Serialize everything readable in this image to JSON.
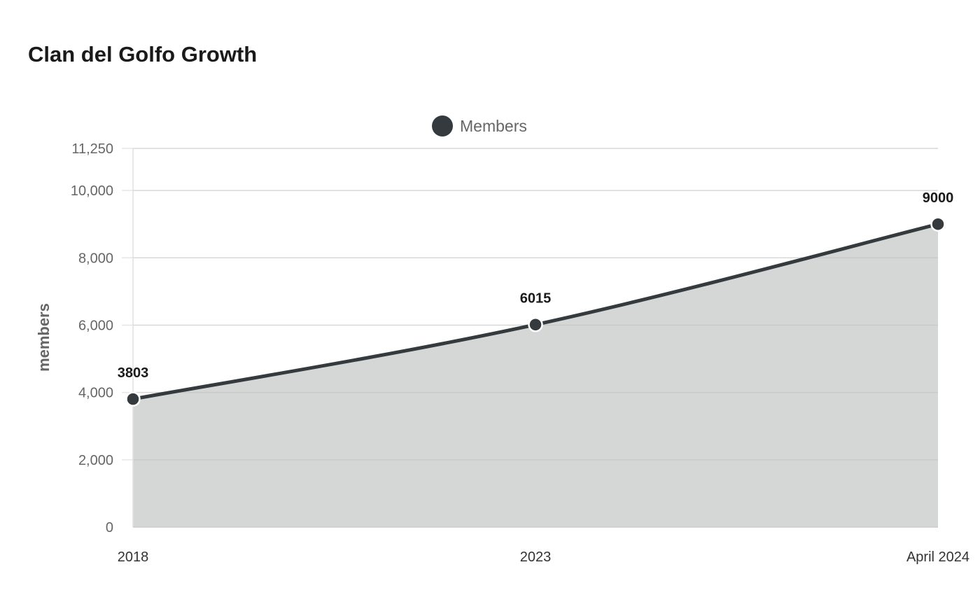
{
  "title": "Clan del Golfo Growth",
  "chart_data": {
    "type": "area",
    "title": "Clan del Golfo Growth",
    "categories": [
      "2018",
      "2023",
      "April 2024"
    ],
    "series": [
      {
        "name": "Members",
        "values": [
          3803,
          6015,
          9000
        ],
        "color": "#343a3d",
        "fill": "#d5d7d7"
      }
    ],
    "data_labels": [
      "3803",
      "6015",
      "9000"
    ],
    "xlabel": "",
    "ylabel": "members",
    "ylim": [
      0,
      11250
    ],
    "yticks": [
      0,
      2000,
      4000,
      6000,
      8000,
      10000,
      11250
    ],
    "ytick_labels": [
      "0",
      "2,000",
      "4,000",
      "6,000",
      "8,000",
      "10,000",
      "11,250"
    ],
    "grid": true,
    "legend_position": "top-center",
    "smooth": true
  }
}
